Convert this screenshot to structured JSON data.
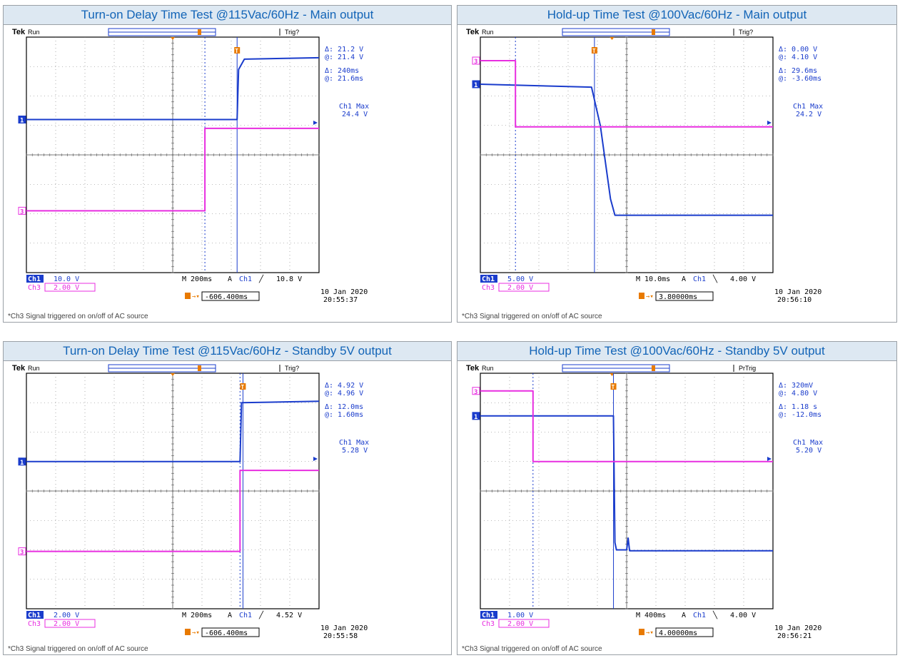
{
  "colors": {
    "ch1": "#1a3ccc",
    "ch3": "#e82ee0",
    "trig": "#e87a00",
    "grid": "#000000",
    "title_bg": "#dde8f2",
    "title_fg": "#1264b7"
  },
  "chart_data": [
    {
      "type": "line",
      "title": "Turn-on Delay Time Test @115Vac/60Hz - Main output",
      "brand": "Tek",
      "run": "Run",
      "trig_status": "Trig?",
      "cursor_v": {
        "delta": "21.2 V",
        "at": "21.4 V"
      },
      "cursor_t": {
        "delta": "240ms",
        "at": "21.6ms"
      },
      "measurement": {
        "label": "Ch1 Max",
        "value": "24.4 V"
      },
      "ch1_scale": "10.0 V",
      "ch3_scale": "2.00 V",
      "timebase": "200ms",
      "trigger": {
        "ch": "Ch1",
        "slope": "rise",
        "level": "10.8 V"
      },
      "trig_offset": "-606.400ms",
      "date": "10 Jan 2020",
      "time": "20:55:37",
      "footnote": "*Ch3 Signal triggered on on/off of AC source",
      "xlim": [
        0,
        10
      ],
      "ylim": [
        0,
        8
      ],
      "series": [
        {
          "name": "Ch1",
          "marker": "1",
          "points": [
            [
              0,
              5.2
            ],
            [
              7.2,
              5.2
            ],
            [
              7.25,
              6.9
            ],
            [
              7.45,
              7.25
            ],
            [
              10,
              7.3
            ]
          ]
        },
        {
          "name": "Ch3",
          "marker": "3",
          "points": [
            [
              0,
              2.1
            ],
            [
              6.1,
              2.1
            ],
            [
              6.1,
              4.9
            ],
            [
              10,
              4.9
            ]
          ]
        }
      ],
      "cursors_x": [
        6.1,
        7.2
      ],
      "trigger_x": 5.0
    },
    {
      "type": "line",
      "title": "Hold-up Time Test @100Vac/60Hz - Main output",
      "brand": "Tek",
      "run": "Run",
      "trig_status": "Trig?",
      "cursor_v": {
        "delta": "0.00 V",
        "at": "4.10 V"
      },
      "cursor_t": {
        "delta": "29.6ms",
        "at": "-3.60ms"
      },
      "measurement": {
        "label": "Ch1 Max",
        "value": "24.2 V"
      },
      "ch1_scale": "5.00 V",
      "ch3_scale": "2.00 V",
      "timebase": "10.0ms",
      "trigger": {
        "ch": "Ch1",
        "slope": "fall",
        "level": "4.00 V"
      },
      "trig_offset": "3.80000ms",
      "date": "10 Jan 2020",
      "time": "20:56:10",
      "footnote": "*Ch3 Signal triggered on on/off of AC source",
      "xlim": [
        0,
        10
      ],
      "ylim": [
        0,
        8
      ],
      "series": [
        {
          "name": "Ch1",
          "marker": "1",
          "points": [
            [
              0,
              6.4
            ],
            [
              3.8,
              6.3
            ],
            [
              4.1,
              5.0
            ],
            [
              4.45,
              2.5
            ],
            [
              4.6,
              1.95
            ],
            [
              10,
              1.95
            ]
          ]
        },
        {
          "name": "Ch3",
          "marker": "3",
          "points": [
            [
              0,
              7.2
            ],
            [
              1.2,
              7.2
            ],
            [
              1.2,
              4.95
            ],
            [
              10,
              4.95
            ]
          ]
        }
      ],
      "cursors_x": [
        1.2,
        3.9
      ],
      "trigger_x": 4.5
    },
    {
      "type": "line",
      "title": "Turn-on Delay Time Test @115Vac/60Hz - Standby 5V output",
      "brand": "Tek",
      "run": "Run",
      "trig_status": "Trig?",
      "cursor_v": {
        "delta": "4.92 V",
        "at": "4.96 V"
      },
      "cursor_t": {
        "delta": "12.0ms",
        "at": "1.60ms"
      },
      "measurement": {
        "label": "Ch1 Max",
        "value": "5.28 V"
      },
      "ch1_scale": "2.00 V",
      "ch3_scale": "2.00 V",
      "timebase": "200ms",
      "trigger": {
        "ch": "Ch1",
        "slope": "rise",
        "level": "4.52 V"
      },
      "trig_offset": "-606.400ms",
      "date": "10 Jan 2020",
      "time": "20:55:58",
      "footnote": "*Ch3 Signal triggered on on/off of AC source",
      "xlim": [
        0,
        10
      ],
      "ylim": [
        0,
        8
      ],
      "series": [
        {
          "name": "Ch1",
          "marker": "1",
          "points": [
            [
              0,
              5.0
            ],
            [
              7.3,
              5.0
            ],
            [
              7.35,
              7.0
            ],
            [
              10,
              7.05
            ]
          ]
        },
        {
          "name": "Ch3",
          "marker": "3",
          "points": [
            [
              0,
              1.95
            ],
            [
              7.3,
              1.95
            ],
            [
              7.3,
              4.7
            ],
            [
              10,
              4.7
            ]
          ]
        }
      ],
      "cursors_x": [
        7.3,
        7.4
      ],
      "trigger_x": 5.0
    },
    {
      "type": "line",
      "title": "Hold-up Time Test @100Vac/60Hz - Standby 5V output",
      "brand": "Tek",
      "run": "Run",
      "trig_status": "PrTrig",
      "cursor_v": {
        "delta": "320mV",
        "at": "4.80 V"
      },
      "cursor_t": {
        "delta": "1.18 s",
        "at": "-12.0ms"
      },
      "measurement": {
        "label": "Ch1 Max",
        "value": "5.20 V"
      },
      "ch1_scale": "1.00 V",
      "ch3_scale": "2.00 V",
      "timebase": "400ms",
      "trigger": {
        "ch": "Ch1",
        "slope": "fall",
        "level": "4.00 V"
      },
      "trig_offset": "4.00000ms",
      "date": "10 Jan 2020",
      "time": "20:56:21",
      "footnote": "*Ch3 Signal triggered on on/off of AC source",
      "xlim": [
        0,
        10
      ],
      "ylim": [
        0,
        8
      ],
      "series": [
        {
          "name": "Ch1",
          "marker": "1",
          "points": [
            [
              0,
              6.55
            ],
            [
              4.55,
              6.55
            ],
            [
              4.6,
              2.25
            ],
            [
              4.65,
              2.0
            ],
            [
              5.0,
              2.0
            ],
            [
              5.05,
              2.4
            ],
            [
              5.1,
              1.97
            ],
            [
              10,
              1.97
            ]
          ]
        },
        {
          "name": "Ch3",
          "marker": "3",
          "points": [
            [
              0,
              7.4
            ],
            [
              1.8,
              7.4
            ],
            [
              1.8,
              5.0
            ],
            [
              10,
              5.0
            ]
          ]
        }
      ],
      "cursors_x": [
        1.8,
        4.55
      ],
      "trigger_x": 4.5
    }
  ]
}
